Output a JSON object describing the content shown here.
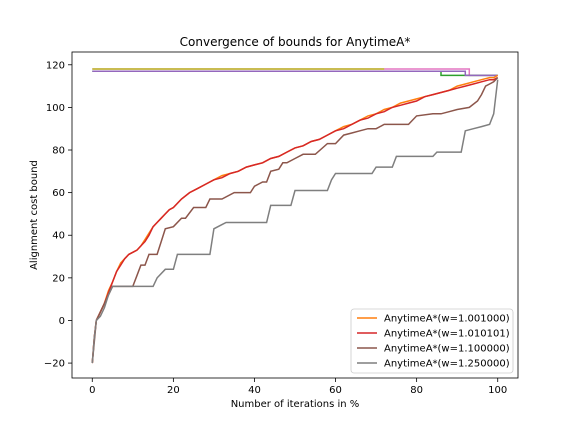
{
  "chart_data": {
    "type": "line",
    "title": "Convergence of bounds for AnytimeA*",
    "xlabel": "Number of iterations in %",
    "ylabel": "Alignment cost bound",
    "xlim": [
      -5,
      105
    ],
    "ylim": [
      -27,
      126
    ],
    "xticks": [
      "0",
      "20",
      "40",
      "60",
      "80",
      "100"
    ],
    "yticks": [
      "−20",
      "0",
      "20",
      "40",
      "60",
      "80",
      "100",
      "120"
    ],
    "grid": false,
    "legend_position": "lower-right",
    "upper_bounds": [
      {
        "color": "#e377c2",
        "points": [
          [
            0,
            118
          ],
          [
            93,
            118
          ],
          [
            93,
            115
          ],
          [
            100,
            115
          ]
        ]
      },
      {
        "color": "#bcbd22",
        "points": [
          [
            0,
            118
          ],
          [
            72,
            118
          ]
        ]
      },
      {
        "color": "#2ca02c",
        "points": [
          [
            0,
            117
          ],
          [
            86,
            117
          ],
          [
            86,
            115
          ],
          [
            100,
            115
          ]
        ]
      },
      {
        "color": "#9467bd",
        "points": [
          [
            0,
            117
          ],
          [
            92,
            117
          ],
          [
            92,
            115
          ],
          [
            100,
            115
          ]
        ]
      }
    ],
    "series": [
      {
        "name": "AnytimeA*(w=1.001000)",
        "color": "#ff7f0e",
        "points": [
          [
            0,
            -20
          ],
          [
            0.5,
            -8
          ],
          [
            1,
            0
          ],
          [
            2,
            4
          ],
          [
            3,
            8
          ],
          [
            4,
            14
          ],
          [
            5,
            18
          ],
          [
            6,
            23
          ],
          [
            7,
            27
          ],
          [
            8,
            29
          ],
          [
            9,
            31
          ],
          [
            10,
            32
          ],
          [
            11,
            33
          ],
          [
            12,
            35
          ],
          [
            13,
            38
          ],
          [
            14,
            41
          ],
          [
            15,
            44
          ],
          [
            16,
            46
          ],
          [
            17,
            48
          ],
          [
            18,
            50
          ],
          [
            19,
            52
          ],
          [
            20,
            53
          ],
          [
            22,
            57
          ],
          [
            24,
            60
          ],
          [
            26,
            62
          ],
          [
            28,
            64
          ],
          [
            30,
            66
          ],
          [
            32,
            68
          ],
          [
            34,
            69
          ],
          [
            36,
            70
          ],
          [
            38,
            72
          ],
          [
            40,
            73
          ],
          [
            42,
            74
          ],
          [
            44,
            76
          ],
          [
            46,
            77
          ],
          [
            48,
            79
          ],
          [
            50,
            81
          ],
          [
            52,
            82
          ],
          [
            54,
            84
          ],
          [
            56,
            85
          ],
          [
            58,
            87
          ],
          [
            60,
            89
          ],
          [
            62,
            91
          ],
          [
            64,
            92
          ],
          [
            66,
            94
          ],
          [
            68,
            96
          ],
          [
            70,
            97
          ],
          [
            72,
            99
          ],
          [
            74,
            100
          ],
          [
            76,
            102
          ],
          [
            78,
            103
          ],
          [
            80,
            104
          ],
          [
            82,
            105
          ],
          [
            84,
            106
          ],
          [
            86,
            107
          ],
          [
            88,
            108
          ],
          [
            90,
            110
          ],
          [
            92,
            111
          ],
          [
            94,
            112
          ],
          [
            96,
            113
          ],
          [
            98,
            114
          ],
          [
            99,
            114
          ],
          [
            100,
            115
          ]
        ]
      },
      {
        "name": "AnytimeA*(w=1.010101)",
        "color": "#d62728",
        "points": [
          [
            0,
            -20
          ],
          [
            0.5,
            -8
          ],
          [
            1,
            0
          ],
          [
            2,
            4
          ],
          [
            3,
            8
          ],
          [
            4,
            13
          ],
          [
            5,
            18
          ],
          [
            6,
            23
          ],
          [
            7,
            26
          ],
          [
            8,
            29
          ],
          [
            9,
            31
          ],
          [
            10,
            32
          ],
          [
            11,
            33
          ],
          [
            12,
            35
          ],
          [
            13,
            37
          ],
          [
            14,
            40
          ],
          [
            15,
            44
          ],
          [
            16,
            46
          ],
          [
            17,
            48
          ],
          [
            18,
            50
          ],
          [
            19,
            52
          ],
          [
            20,
            53
          ],
          [
            22,
            57
          ],
          [
            24,
            60
          ],
          [
            26,
            62
          ],
          [
            28,
            64
          ],
          [
            30,
            66
          ],
          [
            32,
            67
          ],
          [
            34,
            69
          ],
          [
            36,
            70
          ],
          [
            38,
            72
          ],
          [
            40,
            73
          ],
          [
            42,
            74
          ],
          [
            44,
            76
          ],
          [
            46,
            77
          ],
          [
            48,
            79
          ],
          [
            50,
            81
          ],
          [
            52,
            82
          ],
          [
            54,
            84
          ],
          [
            56,
            85
          ],
          [
            58,
            87
          ],
          [
            60,
            89
          ],
          [
            62,
            90
          ],
          [
            64,
            92
          ],
          [
            66,
            94
          ],
          [
            68,
            95
          ],
          [
            70,
            97
          ],
          [
            72,
            98
          ],
          [
            74,
            100
          ],
          [
            76,
            101
          ],
          [
            78,
            102
          ],
          [
            80,
            103
          ],
          [
            82,
            105
          ],
          [
            84,
            106
          ],
          [
            86,
            107
          ],
          [
            88,
            108
          ],
          [
            90,
            109
          ],
          [
            92,
            110
          ],
          [
            94,
            111
          ],
          [
            96,
            112
          ],
          [
            98,
            113
          ],
          [
            99,
            113
          ],
          [
            100,
            114
          ]
        ]
      },
      {
        "name": "AnytimeA*(w=1.100000)",
        "color": "#8c564b",
        "points": [
          [
            0,
            -20
          ],
          [
            1,
            0
          ],
          [
            2,
            4
          ],
          [
            3,
            8
          ],
          [
            4,
            12
          ],
          [
            5,
            16
          ],
          [
            7,
            16
          ],
          [
            10,
            16
          ],
          [
            11,
            21
          ],
          [
            12,
            26
          ],
          [
            13,
            26
          ],
          [
            14,
            31
          ],
          [
            16,
            31
          ],
          [
            17,
            37
          ],
          [
            18,
            43
          ],
          [
            20,
            44
          ],
          [
            22,
            48
          ],
          [
            23,
            48
          ],
          [
            25,
            53
          ],
          [
            28,
            53
          ],
          [
            29,
            57
          ],
          [
            32,
            57
          ],
          [
            35,
            60
          ],
          [
            39,
            60
          ],
          [
            40,
            63
          ],
          [
            42,
            65
          ],
          [
            43,
            65
          ],
          [
            44,
            70
          ],
          [
            46,
            71
          ],
          [
            47,
            74
          ],
          [
            48,
            74
          ],
          [
            50,
            76
          ],
          [
            52,
            78
          ],
          [
            55,
            78
          ],
          [
            58,
            83
          ],
          [
            60,
            83
          ],
          [
            62,
            87
          ],
          [
            64,
            88
          ],
          [
            66,
            89
          ],
          [
            68,
            90
          ],
          [
            70,
            90
          ],
          [
            72,
            92
          ],
          [
            78,
            92
          ],
          [
            80,
            96
          ],
          [
            84,
            97
          ],
          [
            86,
            97
          ],
          [
            88,
            98
          ],
          [
            90,
            99
          ],
          [
            93,
            100
          ],
          [
            95,
            103
          ],
          [
            96,
            106
          ],
          [
            97,
            110
          ],
          [
            98,
            111
          ],
          [
            99,
            112
          ],
          [
            100,
            114
          ]
        ]
      },
      {
        "name": "AnytimeA*(w=1.250000)",
        "color": "#7f7f7f",
        "points": [
          [
            0,
            -20
          ],
          [
            0.5,
            -8
          ],
          [
            1,
            0
          ],
          [
            2,
            2
          ],
          [
            3,
            6
          ],
          [
            4,
            12
          ],
          [
            5,
            16
          ],
          [
            8,
            16
          ],
          [
            15,
            16
          ],
          [
            16,
            20
          ],
          [
            18,
            24
          ],
          [
            20,
            24
          ],
          [
            21,
            31
          ],
          [
            29,
            31
          ],
          [
            30,
            43
          ],
          [
            32,
            45
          ],
          [
            33,
            46
          ],
          [
            43,
            46
          ],
          [
            44,
            54
          ],
          [
            49,
            54
          ],
          [
            50,
            61
          ],
          [
            58,
            61
          ],
          [
            59,
            66
          ],
          [
            60,
            69
          ],
          [
            69,
            69
          ],
          [
            70,
            72
          ],
          [
            74,
            72
          ],
          [
            75,
            77
          ],
          [
            84,
            77
          ],
          [
            85,
            79
          ],
          [
            91,
            79
          ],
          [
            92,
            89
          ],
          [
            94,
            90
          ],
          [
            96,
            91
          ],
          [
            98,
            92
          ],
          [
            99,
            97
          ],
          [
            100,
            113
          ]
        ]
      }
    ]
  }
}
